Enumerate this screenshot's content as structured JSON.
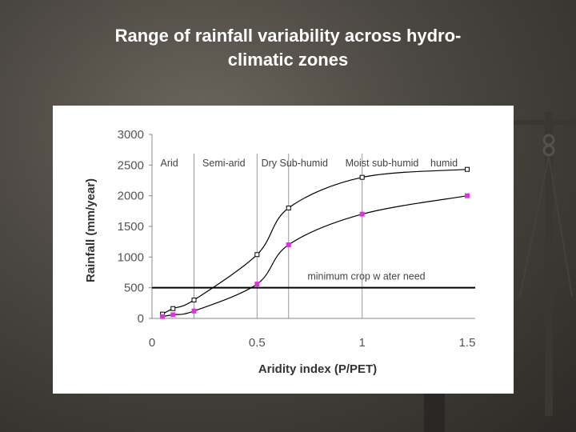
{
  "slide": {
    "title_line1": "Range of rainfall variability across hydro-",
    "title_line2": "climatic zones"
  },
  "colors": {
    "background": "#4a4640",
    "title": "#ffffff",
    "panel": "#ffffff",
    "upper_series": "#000000",
    "lower_series_marker": "#e033e0"
  },
  "chart_data": {
    "type": "line",
    "title": "",
    "xlabel": "Aridity index (P/PET)",
    "ylabel": "Rainfall (mm/year)",
    "xlim": [
      0,
      1.5
    ],
    "ylim": [
      0,
      3000
    ],
    "x_ticks": [
      "0",
      "0.5",
      "1",
      "1.5"
    ],
    "y_ticks": [
      "0",
      "500",
      "1000",
      "1500",
      "2000",
      "2500",
      "3000"
    ],
    "grid": false,
    "series": [
      {
        "marker": "open-square",
        "color": "#000000",
        "x": [
          0.05,
          0.1,
          0.2,
          0.5,
          0.65,
          1.0,
          1.5
        ],
        "y": [
          70,
          160,
          300,
          1040,
          1800,
          2300,
          2430
        ]
      },
      {
        "marker": "filled-square",
        "color": "#e033e0",
        "x": [
          0.05,
          0.1,
          0.2,
          0.5,
          0.65,
          1.0,
          1.5
        ],
        "y": [
          30,
          60,
          120,
          560,
          1200,
          1700,
          2000
        ]
      }
    ],
    "zone_boundaries": [
      0.2,
      0.5,
      0.65,
      1.0
    ],
    "zones": [
      {
        "label": "Arid",
        "x": 0.04
      },
      {
        "label": "Semi-arid",
        "x": 0.24
      },
      {
        "label": "Dry Sub-humid",
        "x": 0.52
      },
      {
        "label": "Moist sub-humid",
        "x": 0.92
      },
      {
        "label": "humid",
        "x": 1.325
      }
    ],
    "reference_line": {
      "y": 500,
      "label": "minimum crop w ater need",
      "label_x": 0.74
    }
  }
}
